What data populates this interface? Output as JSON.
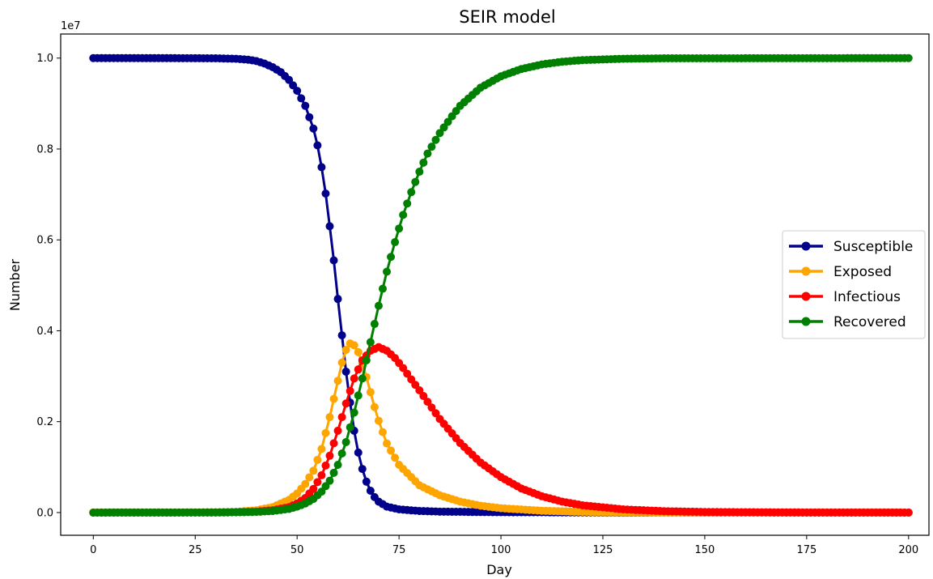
{
  "chart_data": {
    "type": "line",
    "title": "SEIR model",
    "xlabel": "Day",
    "ylabel": "Number",
    "y_offset_label": "1e7",
    "xlim": [
      -8,
      205
    ],
    "ylim": [
      -500000,
      10530000
    ],
    "x_ticks": [
      0,
      25,
      50,
      75,
      100,
      125,
      150,
      175,
      200
    ],
    "x_tick_labels": [
      "0",
      "25",
      "50",
      "75",
      "100",
      "125",
      "150",
      "175",
      "200"
    ],
    "y_ticks": [
      0,
      2000000,
      4000000,
      6000000,
      8000000,
      10000000
    ],
    "y_tick_labels": [
      "0.0",
      "0.2",
      "0.4",
      "0.6",
      "0.8",
      "1.0"
    ],
    "grid": false,
    "legend_position": "center-right",
    "marker": "circle",
    "x_range": {
      "start": 0,
      "end": 200,
      "step": 1
    },
    "series": [
      {
        "name": "Susceptible",
        "color": "#00008b",
        "points": [
          [
            0,
            10000000
          ],
          [
            20,
            9999000
          ],
          [
            30,
            9995000
          ],
          [
            35,
            9985000
          ],
          [
            38,
            9965000
          ],
          [
            40,
            9935000
          ],
          [
            42,
            9880000
          ],
          [
            44,
            9800000
          ],
          [
            46,
            9690000
          ],
          [
            48,
            9520000
          ],
          [
            50,
            9280000
          ],
          [
            52,
            8950000
          ],
          [
            54,
            8450000
          ],
          [
            55,
            8080000
          ],
          [
            56,
            7600000
          ],
          [
            57,
            7020000
          ],
          [
            58,
            6300000
          ],
          [
            59,
            5550000
          ],
          [
            60,
            4700000
          ],
          [
            61,
            3900000
          ],
          [
            62,
            3100000
          ],
          [
            63,
            2420000
          ],
          [
            64,
            1800000
          ],
          [
            65,
            1320000
          ],
          [
            66,
            960000
          ],
          [
            67,
            680000
          ],
          [
            68,
            480000
          ],
          [
            69,
            340000
          ],
          [
            70,
            240000
          ],
          [
            72,
            130000
          ],
          [
            75,
            70000
          ],
          [
            80,
            35000
          ],
          [
            85,
            20000
          ],
          [
            100,
            7000
          ],
          [
            130,
            2000
          ],
          [
            200,
            0
          ]
        ]
      },
      {
        "name": "Exposed",
        "color": "#ffa500",
        "points": [
          [
            0,
            0
          ],
          [
            20,
            1000
          ],
          [
            30,
            6000
          ],
          [
            35,
            15000
          ],
          [
            40,
            50000
          ],
          [
            44,
            120000
          ],
          [
            48,
            280000
          ],
          [
            50,
            420000
          ],
          [
            52,
            630000
          ],
          [
            54,
            920000
          ],
          [
            56,
            1400000
          ],
          [
            58,
            2100000
          ],
          [
            60,
            2900000
          ],
          [
            61,
            3300000
          ],
          [
            62,
            3580000
          ],
          [
            63,
            3720000
          ],
          [
            64,
            3680000
          ],
          [
            65,
            3530000
          ],
          [
            66,
            3280000
          ],
          [
            67,
            2980000
          ],
          [
            68,
            2650000
          ],
          [
            69,
            2320000
          ],
          [
            70,
            2020000
          ],
          [
            72,
            1520000
          ],
          [
            75,
            1050000
          ],
          [
            80,
            600000
          ],
          [
            85,
            380000
          ],
          [
            90,
            240000
          ],
          [
            95,
            150000
          ],
          [
            100,
            95000
          ],
          [
            110,
            40000
          ],
          [
            120,
            15000
          ],
          [
            140,
            3000
          ],
          [
            200,
            0
          ]
        ]
      },
      {
        "name": "Infectious",
        "color": "#ff0000",
        "points": [
          [
            0,
            0
          ],
          [
            20,
            500
          ],
          [
            30,
            3000
          ],
          [
            35,
            8000
          ],
          [
            40,
            20000
          ],
          [
            44,
            50000
          ],
          [
            48,
            120000
          ],
          [
            50,
            200000
          ],
          [
            52,
            320000
          ],
          [
            54,
            520000
          ],
          [
            56,
            820000
          ],
          [
            58,
            1250000
          ],
          [
            60,
            1800000
          ],
          [
            62,
            2400000
          ],
          [
            64,
            2950000
          ],
          [
            66,
            3350000
          ],
          [
            68,
            3560000
          ],
          [
            70,
            3640000
          ],
          [
            72,
            3560000
          ],
          [
            74,
            3400000
          ],
          [
            76,
            3180000
          ],
          [
            78,
            2930000
          ],
          [
            80,
            2690000
          ],
          [
            85,
            2060000
          ],
          [
            90,
            1530000
          ],
          [
            95,
            1100000
          ],
          [
            100,
            780000
          ],
          [
            105,
            530000
          ],
          [
            110,
            360000
          ],
          [
            115,
            240000
          ],
          [
            120,
            160000
          ],
          [
            130,
            70000
          ],
          [
            140,
            30000
          ],
          [
            150,
            13000
          ],
          [
            170,
            2500
          ],
          [
            200,
            0
          ]
        ]
      },
      {
        "name": "Recovered",
        "color": "#008000",
        "points": [
          [
            0,
            0
          ],
          [
            20,
            500
          ],
          [
            30,
            2000
          ],
          [
            35,
            6000
          ],
          [
            40,
            15000
          ],
          [
            44,
            35000
          ],
          [
            48,
            80000
          ],
          [
            50,
            130000
          ],
          [
            52,
            200000
          ],
          [
            54,
            300000
          ],
          [
            56,
            460000
          ],
          [
            58,
            700000
          ],
          [
            60,
            1050000
          ],
          [
            62,
            1550000
          ],
          [
            64,
            2200000
          ],
          [
            66,
            2950000
          ],
          [
            68,
            3750000
          ],
          [
            70,
            4550000
          ],
          [
            72,
            5300000
          ],
          [
            74,
            5950000
          ],
          [
            76,
            6550000
          ],
          [
            78,
            7050000
          ],
          [
            80,
            7500000
          ],
          [
            82,
            7900000
          ],
          [
            85,
            8350000
          ],
          [
            88,
            8720000
          ],
          [
            90,
            8950000
          ],
          [
            95,
            9350000
          ],
          [
            100,
            9600000
          ],
          [
            105,
            9760000
          ],
          [
            110,
            9860000
          ],
          [
            115,
            9920000
          ],
          [
            120,
            9955000
          ],
          [
            130,
            9985000
          ],
          [
            140,
            9995000
          ],
          [
            200,
            10000000
          ]
        ]
      }
    ]
  }
}
